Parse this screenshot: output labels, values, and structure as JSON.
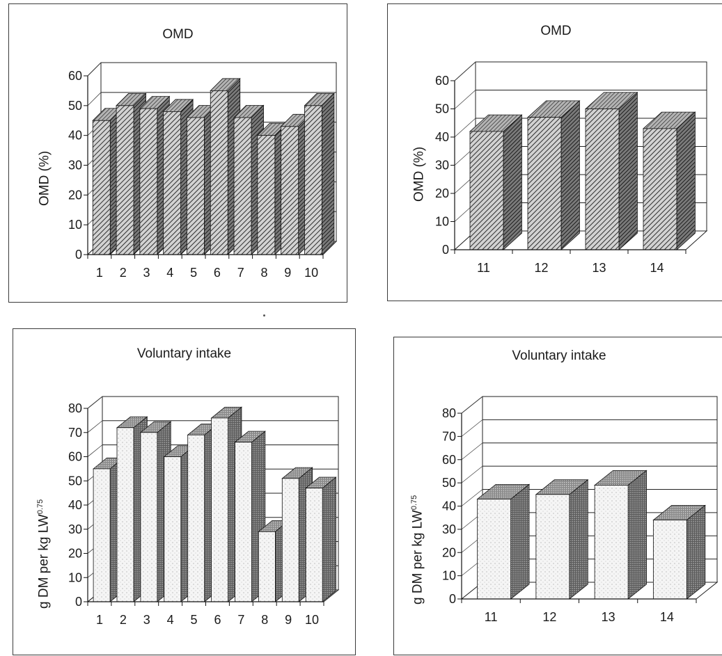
{
  "chart_data": [
    {
      "id": "omd-left",
      "type": "bar",
      "title": "OMD",
      "ylabel": "OMD (%)",
      "ylabel_unit_sup": "",
      "categories": [
        "1",
        "2",
        "3",
        "4",
        "5",
        "6",
        "7",
        "8",
        "9",
        "10"
      ],
      "values": [
        45,
        50,
        49,
        48,
        46,
        55,
        46,
        40,
        43,
        50
      ],
      "ylim": [
        0,
        60
      ],
      "yticks": [
        "0",
        "10",
        "20",
        "30",
        "40",
        "50",
        "60"
      ],
      "fill": "hatch-dark",
      "grid": true,
      "legend": "none"
    },
    {
      "id": "omd-right",
      "type": "bar",
      "title": "OMD",
      "ylabel": "OMD (%)",
      "ylabel_unit_sup": "",
      "categories": [
        "11",
        "12",
        "13",
        "14"
      ],
      "values": [
        42,
        47,
        50,
        43
      ],
      "ylim": [
        0,
        60
      ],
      "yticks": [
        "0",
        "10",
        "20",
        "30",
        "40",
        "50",
        "60"
      ],
      "fill": "hatch-dark",
      "grid": true,
      "legend": "none"
    },
    {
      "id": "intake-left",
      "type": "bar",
      "title": "Voluntary intake",
      "ylabel": "g DM per kg LW",
      "ylabel_unit_sup": "0.75",
      "categories": [
        "1",
        "2",
        "3",
        "4",
        "5",
        "6",
        "7",
        "8",
        "9",
        "10"
      ],
      "values": [
        55,
        72,
        70,
        60,
        69,
        76,
        66,
        29,
        51,
        47
      ],
      "ylim": [
        0,
        80
      ],
      "yticks": [
        "0",
        "10",
        "20",
        "30",
        "40",
        "50",
        "60",
        "70",
        "80"
      ],
      "fill": "stipple-light",
      "grid": true,
      "legend": "none"
    },
    {
      "id": "intake-right",
      "type": "bar",
      "title": "Voluntary intake",
      "ylabel": "g DM per kg LW",
      "ylabel_unit_sup": "0.75",
      "categories": [
        "11",
        "12",
        "13",
        "14"
      ],
      "values": [
        43,
        45,
        49,
        34
      ],
      "ylim": [
        0,
        80
      ],
      "yticks": [
        "0",
        "10",
        "20",
        "30",
        "40",
        "50",
        "60",
        "70",
        "80"
      ],
      "fill": "stipple-light",
      "grid": true,
      "legend": "none"
    }
  ]
}
